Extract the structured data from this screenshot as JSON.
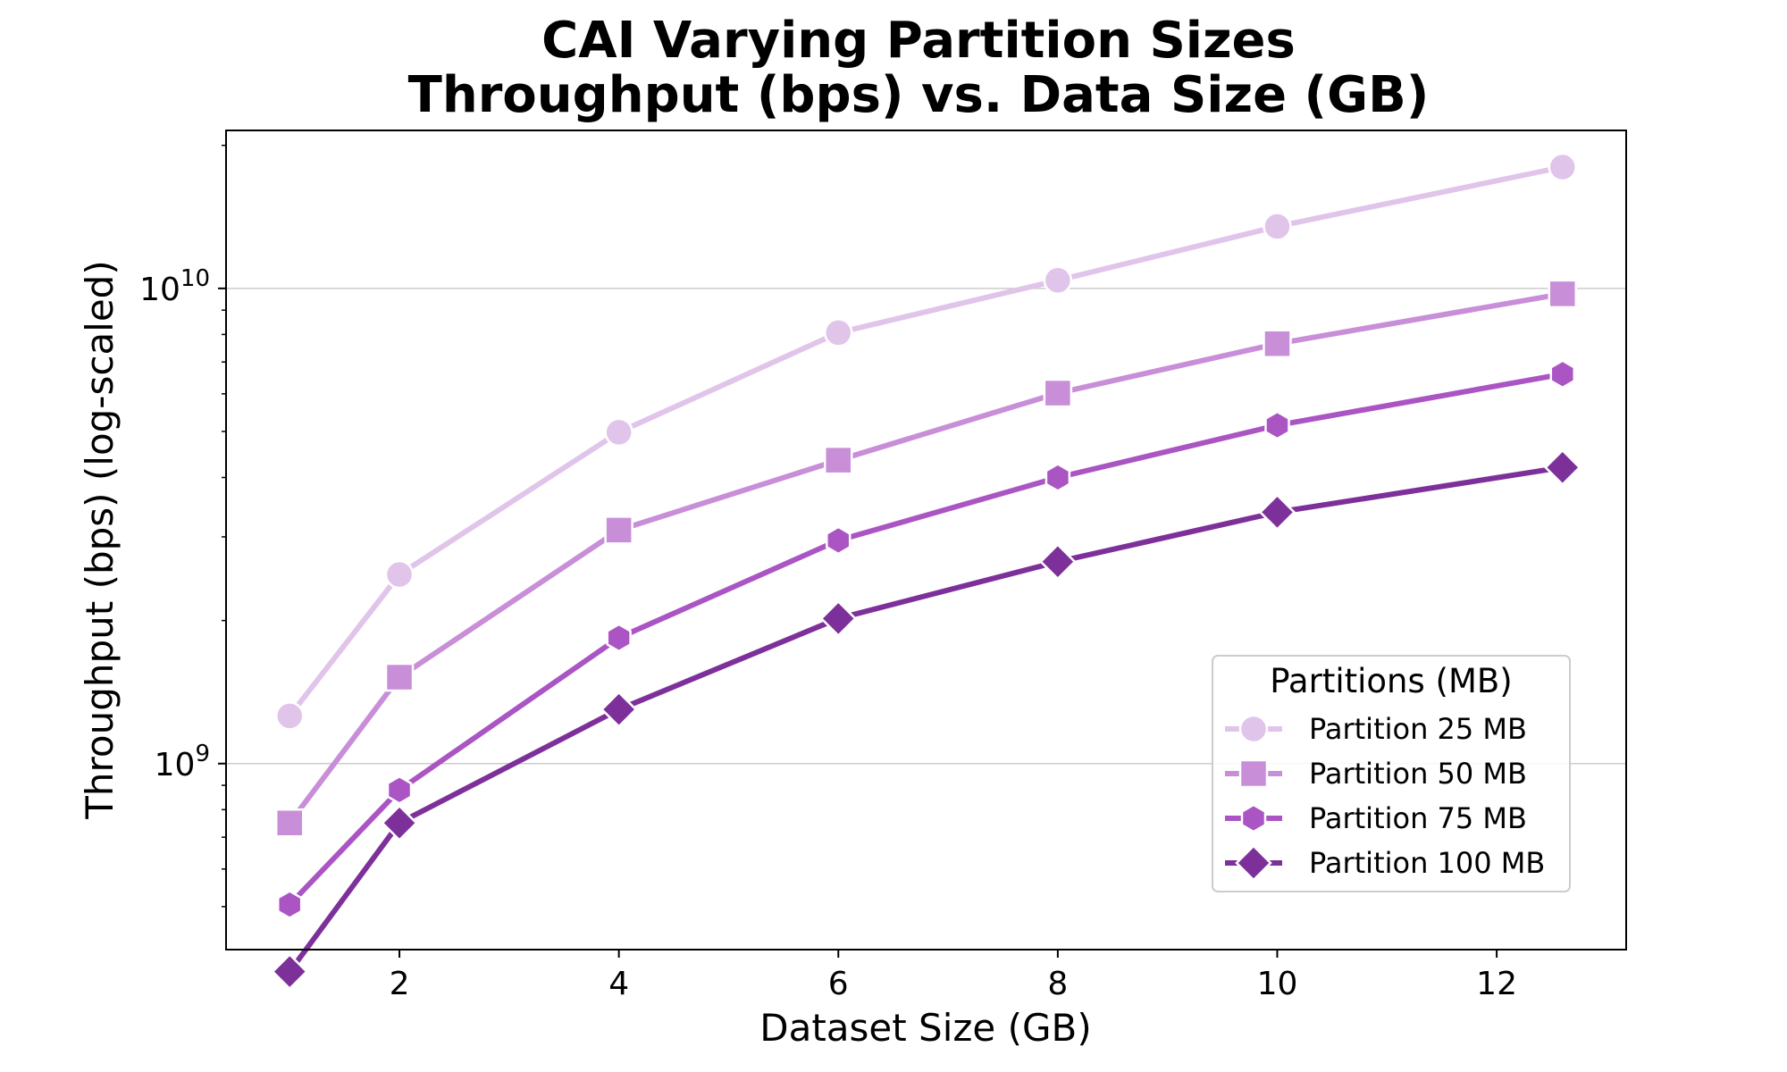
{
  "chart_data": {
    "type": "line",
    "title": "CAI Varying Partition Sizes",
    "subtitle": "Throughput (bps) vs. Data Size (GB)",
    "xlabel": "Dataset Size (GB)",
    "ylabel": "Throughput (bps) (log-scaled)",
    "yscale": "log",
    "xlim": [
      0.42,
      13.18
    ],
    "ylim": [
      406000000.0,
      21500000000.0
    ],
    "x_ticks": [
      2,
      4,
      6,
      8,
      10,
      12
    ],
    "x_tick_labels": [
      "2",
      "4",
      "6",
      "8",
      "10",
      "12"
    ],
    "y_ticks": [
      1000000000.0,
      10000000000.0
    ],
    "y_tick_labels": [
      {
        "base": "10",
        "exp": "9"
      },
      {
        "base": "10",
        "exp": "10"
      }
    ],
    "grid": "horizontal",
    "legend": {
      "title": "Partitions (MB)",
      "placement": "lower-right"
    },
    "x": [
      1,
      2,
      4,
      6,
      8,
      10,
      12.6
    ],
    "series": [
      {
        "name": "Partition 25 MB",
        "marker": "circle",
        "color": "#e1c4ea",
        "values": [
          1260000000.0,
          2500000000.0,
          4980000000.0,
          8070000000.0,
          10400000000.0,
          13500000000.0,
          18000000000.0
        ]
      },
      {
        "name": "Partition 50 MB",
        "marker": "square",
        "color": "#c88ed8",
        "values": [
          750000000.0,
          1520000000.0,
          3100000000.0,
          4350000000.0,
          6020000000.0,
          7650000000.0,
          9740000000.0
        ]
      },
      {
        "name": "Partition 75 MB",
        "marker": "hexagon",
        "color": "#aa55c3",
        "values": [
          505000000.0,
          880000000.0,
          1840000000.0,
          2950000000.0,
          4000000000.0,
          5150000000.0,
          6600000000.0
        ]
      },
      {
        "name": "Partition 100 MB",
        "marker": "diamond",
        "color": "#7e309a",
        "values": [
          365000000.0,
          750000000.0,
          1300000000.0,
          2020000000.0,
          2660000000.0,
          3380000000.0,
          4200000000.0
        ]
      }
    ]
  }
}
